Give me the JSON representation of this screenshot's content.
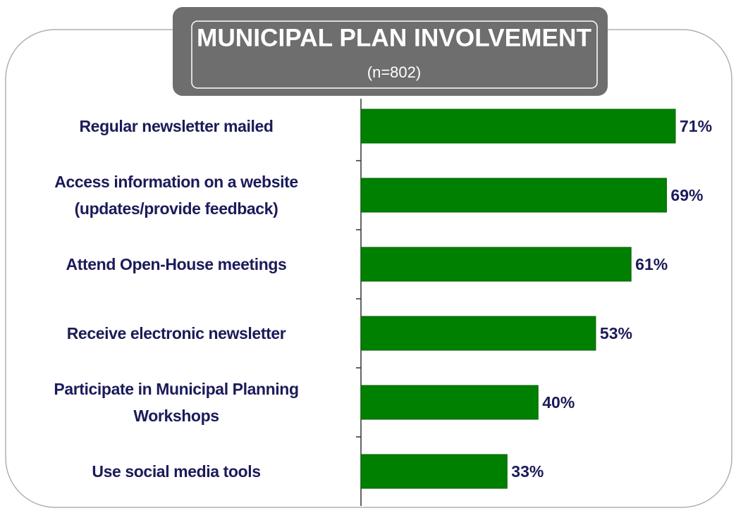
{
  "chart_data": {
    "type": "bar",
    "orientation": "horizontal",
    "title": "MUNICIPAL PLAN INVOLVEMENT",
    "subtitle": "(n=802)",
    "categories": [
      "Regular newsletter mailed",
      "Access information on a website\n(updates/provide feedback)",
      "Attend Open-House meetings",
      "Receive electronic newsletter",
      "Participate in Municipal Planning\nWorkshops",
      "Use social media tools"
    ],
    "values": [
      71,
      69,
      61,
      53,
      40,
      33
    ],
    "value_labels": [
      "71%",
      "69%",
      "61%",
      "53%",
      "40%",
      "33%"
    ],
    "color": "#008000"
  }
}
